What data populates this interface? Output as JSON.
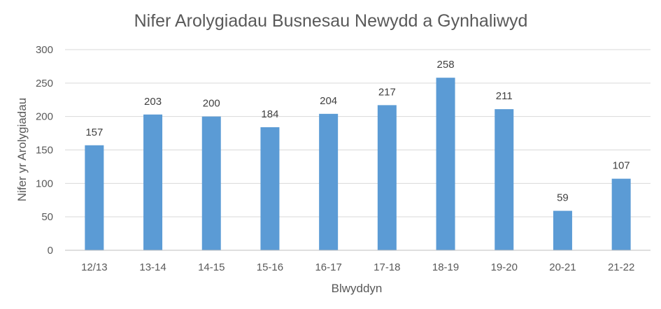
{
  "chart_data": {
    "type": "bar",
    "title": "Nifer Arolygiadau Busnesau Newydd a Gynhaliwyd",
    "xlabel": "Blwyddyn",
    "ylabel": "Nifer yr Arolygiadau",
    "categories": [
      "12/13",
      "13-14",
      "14-15",
      "15-16",
      "16-17",
      "17-18",
      "18-19",
      "19-20",
      "20-21",
      "21-22"
    ],
    "values": [
      157,
      203,
      200,
      184,
      204,
      217,
      258,
      211,
      59,
      107
    ],
    "data_labels": [
      "157",
      "203",
      "200",
      "184",
      "204",
      "217",
      "258",
      "211",
      "59",
      "107"
    ],
    "ylim": [
      0,
      300
    ],
    "yticks": [
      0,
      50,
      100,
      150,
      200,
      250,
      300
    ],
    "grid": true,
    "legend": "none",
    "colors": {
      "bar": "#5B9BD5",
      "grid": "#D9D9D9",
      "axis": "#BFBFBF",
      "text": "#595959"
    }
  }
}
